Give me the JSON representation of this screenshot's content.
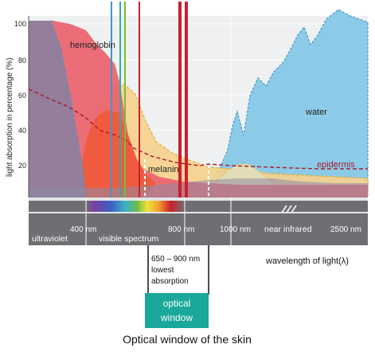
{
  "chart_data": {
    "type": "area",
    "title": "",
    "caption": "Optical window of the skin",
    "ylabel": "light absorption in percentage (%)",
    "xlabel": "wavelength of light(λ)",
    "y_ticks": [
      "100",
      "80",
      "60",
      "40",
      "20"
    ],
    "x_ticks": [
      "400 nm",
      "800 nm",
      "1000 nm",
      "2500 nm"
    ],
    "bands": {
      "ultraviolet": "ultraviolet",
      "visible": "visible spectrum",
      "near_infrared": "near infrared"
    },
    "series": [
      {
        "name": "hemoglobin",
        "color": "#e4414d",
        "points": [
          [
            0,
            100
          ],
          [
            1,
            100
          ],
          [
            2,
            100
          ],
          [
            3,
            100
          ],
          [
            4,
            100
          ],
          [
            5,
            100
          ],
          [
            6,
            100
          ],
          [
            7,
            72
          ],
          [
            8,
            45
          ],
          [
            9,
            22
          ],
          [
            10,
            12
          ],
          [
            11,
            8
          ],
          [
            12,
            7
          ],
          [
            13,
            7
          ],
          [
            14,
            7
          ],
          [
            15,
            7
          ]
        ]
      },
      {
        "name": "melanin",
        "color": "#f2c66f",
        "points": [
          [
            5,
            12
          ],
          [
            6,
            50
          ],
          [
            7,
            58
          ],
          [
            8,
            48
          ],
          [
            9,
            30
          ],
          [
            10,
            20
          ],
          [
            11,
            12
          ],
          [
            12,
            8
          ],
          [
            13,
            7
          ],
          [
            14,
            6
          ],
          [
            15,
            6
          ]
        ]
      },
      {
        "name": "water",
        "color": "#7ec4e6",
        "points": [
          [
            10,
            2
          ],
          [
            11,
            5
          ],
          [
            12,
            30
          ],
          [
            13,
            60
          ],
          [
            14,
            80
          ],
          [
            15,
            100
          ]
        ]
      },
      {
        "name": "epidermis",
        "color": "#a51d2d",
        "points": [
          [
            0,
            58
          ],
          [
            2,
            40
          ],
          [
            4,
            28
          ],
          [
            6,
            22
          ],
          [
            8,
            12
          ],
          [
            10,
            10
          ],
          [
            12,
            10
          ],
          [
            15,
            10
          ]
        ]
      }
    ],
    "optical_window": {
      "range_label": "650 – 900 nm",
      "note_line1": "lowest",
      "note_line2": "absorption",
      "badge_line1": "optical",
      "badge_line2": "window"
    }
  }
}
